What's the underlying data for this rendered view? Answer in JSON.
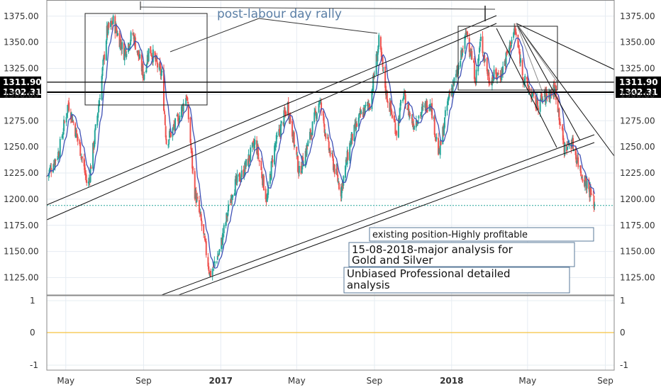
{
  "chart_data": {
    "type": "candlestick",
    "title": "",
    "xlabel": "",
    "ylabel": "",
    "ylim": [
      1106,
      1392
    ],
    "x_start": "2016-04-01",
    "x_end": "2018-09-15",
    "x_ticks": [
      {
        "label": "May",
        "date": "2016-05-01",
        "bold": false
      },
      {
        "label": "Sep",
        "date": "2016-09-01",
        "bold": false
      },
      {
        "label": "2017",
        "date": "2017-01-01",
        "bold": true
      },
      {
        "label": "May",
        "date": "2017-05-01",
        "bold": false
      },
      {
        "label": "Sep",
        "date": "2017-09-01",
        "bold": false
      },
      {
        "label": "2018",
        "date": "2018-01-01",
        "bold": true
      },
      {
        "label": "May",
        "date": "2018-05-01",
        "bold": false
      },
      {
        "label": "Sep",
        "date": "2018-09-01",
        "bold": false
      }
    ],
    "y_ticks": [
      "1125.00",
      "1150.00",
      "1175.00",
      "1200.00",
      "1225.00",
      "1250.00",
      "1275.00",
      "1300.00",
      "1325.00",
      "1350.00",
      "1375.00"
    ],
    "price_levels": [
      {
        "label": "1311.90",
        "value": 1311.9,
        "color": "#000000"
      },
      {
        "label": "1302.31",
        "value": 1302.31,
        "color": "#000000"
      }
    ],
    "current_price_dotted": 1194,
    "price_path": [
      [
        "2016-04-01",
        1222
      ],
      [
        "2016-04-20",
        1245
      ],
      [
        "2016-05-05",
        1292
      ],
      [
        "2016-05-25",
        1245
      ],
      [
        "2016-06-05",
        1210
      ],
      [
        "2016-06-20",
        1280
      ],
      [
        "2016-07-05",
        1360
      ],
      [
        "2016-07-15",
        1370
      ],
      [
        "2016-08-01",
        1340
      ],
      [
        "2016-08-15",
        1358
      ],
      [
        "2016-09-01",
        1318
      ],
      [
        "2016-09-10",
        1345
      ],
      [
        "2016-09-30",
        1318
      ],
      [
        "2016-10-07",
        1255
      ],
      [
        "2016-10-25",
        1275
      ],
      [
        "2016-11-08",
        1300
      ],
      [
        "2016-11-20",
        1210
      ],
      [
        "2016-12-01",
        1178
      ],
      [
        "2016-12-15",
        1128
      ],
      [
        "2016-12-30",
        1150
      ],
      [
        "2017-01-20",
        1210
      ],
      [
        "2017-02-05",
        1225
      ],
      [
        "2017-02-25",
        1255
      ],
      [
        "2017-03-15",
        1198
      ],
      [
        "2017-03-25",
        1245
      ],
      [
        "2017-04-17",
        1290
      ],
      [
        "2017-05-05",
        1225
      ],
      [
        "2017-05-20",
        1255
      ],
      [
        "2017-06-06",
        1295
      ],
      [
        "2017-06-20",
        1250
      ],
      [
        "2017-07-10",
        1208
      ],
      [
        "2017-07-25",
        1255
      ],
      [
        "2017-08-10",
        1280
      ],
      [
        "2017-08-25",
        1292
      ],
      [
        "2017-09-08",
        1350
      ],
      [
        "2017-09-20",
        1300
      ],
      [
        "2017-10-06",
        1265
      ],
      [
        "2017-10-16",
        1300
      ],
      [
        "2017-11-01",
        1272
      ],
      [
        "2017-11-28",
        1295
      ],
      [
        "2017-12-12",
        1242
      ],
      [
        "2017-12-28",
        1300
      ],
      [
        "2018-01-10",
        1320
      ],
      [
        "2018-01-25",
        1360
      ],
      [
        "2018-02-08",
        1315
      ],
      [
        "2018-02-16",
        1352
      ],
      [
        "2018-03-01",
        1315
      ],
      [
        "2018-03-20",
        1320
      ],
      [
        "2018-04-11",
        1362
      ],
      [
        "2018-04-25",
        1315
      ],
      [
        "2018-05-15",
        1290
      ],
      [
        "2018-06-01",
        1300
      ],
      [
        "2018-06-14",
        1305
      ],
      [
        "2018-06-28",
        1248
      ],
      [
        "2018-07-10",
        1255
      ],
      [
        "2018-07-25",
        1225
      ],
      [
        "2018-08-05",
        1212
      ],
      [
        "2018-08-15",
        1195
      ]
    ],
    "indicator_panel": {
      "y_ticks": [
        "1",
        "0",
        "-1"
      ],
      "zero_line_color": "#f5c242"
    },
    "annotation_boxes": [
      {
        "text": "existing position-Highly profitable"
      },
      {
        "text": "15-08-2018-major analysis for Gold and Silver"
      },
      {
        "text": "Unbiased Professional detailed analysis"
      }
    ],
    "callout_text": "post-labour day rally",
    "colors": {
      "up": "#26a69a",
      "down": "#ef5350",
      "ma": "#3f51b5",
      "trendline": "#111111",
      "current_price": "#26a69a",
      "callout": "#5b7fa6"
    }
  }
}
